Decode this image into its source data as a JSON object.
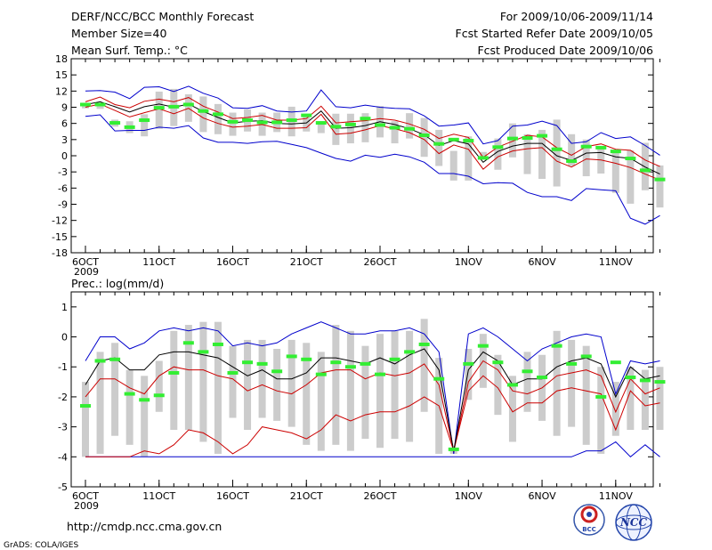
{
  "header": {
    "title": "DERF/NCC/BCC Monthly Forecast",
    "member_size": "Member Size=40",
    "variable": "Mean Surf. Temp.: °C",
    "period": "For 2009/10/06-2009/11/14",
    "refer_date": "Fcst Started Refer Date 2009/10/05",
    "produced_date": "Fcst Produced Date 2009/10/06"
  },
  "footer": {
    "url": "http://cmdp.ncc.cma.gov.cn",
    "credit": "GrADS: COLA/IGES",
    "logo_bcc": "BCC",
    "logo_ncc": "NCC"
  },
  "colors": {
    "ensemble_mean": "#000000",
    "envelope": "#0000cc",
    "percentile": "#cc0000",
    "bar": "#cccccc",
    "observed": "#33ee33"
  },
  "chart_data": [
    {
      "type": "line",
      "title": "Mean Surf. Temp.: °C",
      "xlabel": "",
      "ylabel": "°C",
      "ylim": [
        -18,
        18
      ],
      "yticks": [
        -18,
        -15,
        -12,
        -9,
        -6,
        -3,
        0,
        3,
        6,
        9,
        12,
        15,
        18
      ],
      "xtick_labels": [
        "6OCT",
        "11OCT",
        "16OCT",
        "21OCT",
        "26OCT",
        "1NOV",
        "6NOV",
        "11NOV"
      ],
      "xtick_days": [
        0,
        5,
        10,
        15,
        20,
        26,
        31,
        36
      ],
      "year_label": "2009",
      "days": 40,
      "series": [
        {
          "name": "max",
          "values": [
            12,
            12.1,
            11.8,
            10.6,
            12.7,
            12.8,
            11.9,
            12.9,
            11.6,
            10.7,
            8.9,
            8.8,
            9.3,
            8.3,
            8.1,
            8.3,
            12.2,
            9.1,
            8.9,
            9.4,
            9.0,
            8.8,
            8.7,
            7.4,
            5.5,
            5.7,
            6.1,
            2.2,
            2.8,
            5.5,
            5.7,
            6.4,
            5.6,
            2.3,
            2.6,
            4.3,
            3.2,
            3.5,
            1.9,
            0.1
          ]
        },
        {
          "name": "p75",
          "values": [
            10.0,
            10.9,
            9.5,
            8.9,
            10.1,
            10.5,
            10.0,
            10.8,
            9.2,
            8.1,
            6.9,
            7.1,
            7.5,
            6.6,
            6.6,
            6.9,
            9.2,
            6.1,
            6.3,
            6.5,
            6.9,
            6.6,
            5.9,
            4.9,
            3.2,
            4.0,
            3.4,
            -0.3,
            1.6,
            2.7,
            3.8,
            3.5,
            1.5,
            0.1,
            1.7,
            2.2,
            1.2,
            1.0,
            -0.8,
            -2.0
          ]
        },
        {
          "name": "mean",
          "values": [
            9.5,
            10.0,
            9.1,
            8.1,
            9.1,
            9.6,
            9.0,
            9.6,
            8.2,
            7.1,
            6.1,
            6.4,
            6.5,
            6.0,
            5.9,
            6.1,
            8.3,
            5.1,
            5.2,
            5.6,
            6.3,
            5.8,
            5.0,
            3.9,
            1.9,
            2.8,
            2.2,
            -1.2,
            0.8,
            1.8,
            2.3,
            2.3,
            0.0,
            -0.9,
            0.5,
            0.6,
            -0.2,
            -0.5,
            -2.1,
            -3.4
          ]
        },
        {
          "name": "p25",
          "values": [
            9.0,
            9.6,
            8.4,
            7.2,
            8.0,
            8.7,
            7.8,
            8.8,
            7.0,
            6.0,
            5.3,
            5.5,
            5.8,
            5.1,
            5.1,
            5.2,
            7.7,
            4.0,
            4.2,
            4.8,
            5.6,
            5.0,
            4.3,
            3.0,
            0.4,
            2.0,
            1.2,
            -2.5,
            -0.2,
            0.9,
            1.3,
            1.5,
            -1.0,
            -2.1,
            -0.6,
            -0.8,
            -1.4,
            -2.2,
            -3.4,
            -4.5
          ]
        },
        {
          "name": "min",
          "values": [
            7.3,
            7.6,
            4.6,
            4.7,
            4.7,
            5.3,
            5.1,
            5.6,
            3.3,
            2.5,
            2.5,
            2.3,
            2.6,
            2.7,
            2.1,
            1.5,
            0.5,
            -0.5,
            -1.0,
            0.1,
            -0.3,
            0.3,
            -0.2,
            -1.2,
            -3.3,
            -3.3,
            -3.8,
            -5.2,
            -5.0,
            -5.1,
            -6.8,
            -7.6,
            -7.6,
            -8.3,
            -6.1,
            -6.3,
            -6.5,
            -11.6,
            -12.7,
            -11.1
          ]
        },
        {
          "name": "observed",
          "values": [
            9.5,
            9.5,
            6.1,
            5.3,
            6.6,
            8.9,
            9.1,
            9.5,
            8.3,
            7.7,
            6.3,
            6.6,
            6.2,
            6.2,
            6.6,
            7.5,
            6.1,
            5.4,
            5.8,
            6.9,
            5.7,
            5.2,
            5.0,
            3.8,
            2.2,
            3.0,
            2.8,
            -0.4,
            1.6,
            3.2,
            3.3,
            3.7,
            1.2,
            -1.0,
            1.7,
            1.5,
            0.8,
            -0.5,
            -2.7,
            -4.4
          ]
        },
        {
          "name": "bar_top",
          "values": [
            9.5,
            9.5,
            6.7,
            6.4,
            7.7,
            11.9,
            12.4,
            11.4,
            11.0,
            9.6,
            8.0,
            8.6,
            8.0,
            8.0,
            9.1,
            7.7,
            6.1,
            7.8,
            7.8,
            7.9,
            9.2,
            6.4,
            7.9,
            7.0,
            4.8,
            0.9,
            3.6,
            0.7,
            3.2,
            6.0,
            4.0,
            4.8,
            6.7,
            4.0,
            3.0,
            1.5,
            0.5,
            1.0,
            2.4,
            -1.8
          ]
        },
        {
          "name": "bar_bottom",
          "values": [
            8.8,
            8.7,
            5.4,
            4.2,
            3.6,
            5.0,
            5.5,
            6.3,
            4.4,
            4.0,
            3.7,
            4.5,
            3.7,
            4.4,
            3.6,
            4.5,
            4.2,
            2.0,
            2.3,
            2.5,
            3.4,
            2.3,
            3.2,
            -0.2,
            -1.9,
            -4.6,
            -4.6,
            -0.4,
            -2.6,
            -0.3,
            -3.4,
            -4.3,
            -5.7,
            -1.9,
            -3.8,
            -3.3,
            -6.9,
            -8.9,
            -6.4,
            -9.6
          ]
        }
      ]
    },
    {
      "type": "line",
      "title": "Prec.: log(mm/d)",
      "xlabel": "",
      "ylabel": "log(mm/d)",
      "ylim": [
        -5,
        1.5
      ],
      "yticks": [
        -5,
        -4,
        -3,
        -2,
        -1,
        0,
        1
      ],
      "xtick_labels": [
        "6OCT",
        "11OCT",
        "16OCT",
        "21OCT",
        "26OCT",
        "1NOV",
        "6NOV",
        "11NOV"
      ],
      "xtick_days": [
        0,
        5,
        10,
        15,
        20,
        26,
        31,
        36
      ],
      "year_label": "2009",
      "days": 40,
      "series": [
        {
          "name": "max",
          "values": [
            -0.8,
            0.0,
            0.0,
            -0.4,
            -0.2,
            0.2,
            0.3,
            0.2,
            0.3,
            0.2,
            -0.3,
            -0.2,
            -0.3,
            -0.2,
            0.1,
            0.3,
            0.5,
            0.3,
            0.1,
            0.1,
            0.2,
            0.2,
            0.3,
            0.1,
            -0.5,
            -3.9,
            0.1,
            0.3,
            0.0,
            -0.4,
            -0.8,
            -0.4,
            -0.2,
            0.0,
            0.1,
            0.0,
            -1.9,
            -0.8,
            -0.9,
            -0.8
          ]
        },
        {
          "name": "mean",
          "values": [
            -1.6,
            -0.8,
            -0.7,
            -1.1,
            -1.1,
            -0.6,
            -0.5,
            -0.5,
            -0.6,
            -0.7,
            -1.0,
            -1.3,
            -1.1,
            -1.4,
            -1.4,
            -1.2,
            -0.7,
            -0.7,
            -0.8,
            -0.9,
            -0.7,
            -0.9,
            -0.6,
            -0.4,
            -1.1,
            -3.8,
            -1.1,
            -0.5,
            -0.8,
            -1.6,
            -1.4,
            -1.4,
            -1.0,
            -0.8,
            -0.7,
            -0.9,
            -2.0,
            -1.0,
            -1.4,
            -1.3
          ]
        },
        {
          "name": "p75",
          "values": [
            -2.0,
            -1.4,
            -1.4,
            -1.7,
            -1.9,
            -1.3,
            -1.0,
            -1.1,
            -1.1,
            -1.3,
            -1.4,
            -1.8,
            -1.6,
            -1.8,
            -1.9,
            -1.6,
            -1.2,
            -1.1,
            -1.1,
            -1.4,
            -1.2,
            -1.3,
            -1.2,
            -0.9,
            -1.6,
            -3.8,
            -1.5,
            -0.8,
            -1.1,
            -1.8,
            -1.9,
            -1.7,
            -1.3,
            -1.2,
            -1.1,
            -1.3,
            -2.5,
            -1.4,
            -1.9,
            -1.7
          ]
        },
        {
          "name": "p25",
          "values": [
            -4.0,
            -4.0,
            -4.0,
            -4.0,
            -3.8,
            -3.9,
            -3.6,
            -3.1,
            -3.2,
            -3.5,
            -3.9,
            -3.6,
            -3.0,
            -3.1,
            -3.2,
            -3.4,
            -3.1,
            -2.6,
            -2.8,
            -2.6,
            -2.5,
            -2.5,
            -2.3,
            -2.0,
            -2.3,
            -3.8,
            -1.8,
            -1.3,
            -1.7,
            -2.5,
            -2.2,
            -2.2,
            -1.8,
            -1.7,
            -1.8,
            -1.9,
            -3.1,
            -1.8,
            -2.3,
            -2.2
          ]
        },
        {
          "name": "min",
          "values": [
            -4.0,
            -4.0,
            -4.0,
            -4.0,
            -4.0,
            -4.0,
            -4.0,
            -4.0,
            -4.0,
            -4.0,
            -4.0,
            -4.0,
            -4.0,
            -4.0,
            -4.0,
            -4.0,
            -4.0,
            -4.0,
            -4.0,
            -4.0,
            -4.0,
            -4.0,
            -4.0,
            -4.0,
            -4.0,
            -4.0,
            -4.0,
            -4.0,
            -4.0,
            -4.0,
            -4.0,
            -4.0,
            -4.0,
            -4.0,
            -3.8,
            -3.8,
            -3.5,
            -4.0,
            -3.6,
            -4.0
          ]
        },
        {
          "name": "observed",
          "values": [
            -2.3,
            -0.8,
            -0.75,
            -1.9,
            -2.1,
            -1.95,
            -1.2,
            -0.2,
            -0.5,
            -0.25,
            -1.2,
            -0.85,
            -0.9,
            -1.15,
            -0.65,
            -0.75,
            -1.25,
            -0.85,
            -1.0,
            -0.9,
            -1.25,
            -0.75,
            -0.5,
            -0.25,
            -1.4,
            -3.75,
            -0.9,
            -0.3,
            -0.85,
            -1.6,
            -1.15,
            -1.35,
            -0.3,
            -0.9,
            -0.65,
            -2.0,
            -0.85,
            -1.35,
            -1.45,
            -1.5
          ]
        },
        {
          "name": "bar_top",
          "values": [
            -1.5,
            -0.5,
            -0.2,
            -1.1,
            -1.3,
            -0.8,
            0.2,
            0.4,
            0.5,
            0.5,
            -0.3,
            -0.1,
            -0.1,
            -0.4,
            -0.1,
            -0.2,
            -0.5,
            0.4,
            0.2,
            -0.3,
            0.1,
            0.2,
            0.2,
            0.6,
            -0.7,
            -3.8,
            -0.4,
            0.1,
            -0.6,
            -1.3,
            -0.5,
            -0.6,
            0.2,
            -0.1,
            -0.3,
            -1.0,
            -1.5,
            -1.0,
            -1.1,
            -1.0
          ]
        },
        {
          "name": "bar_bottom",
          "values": [
            -4.0,
            -3.9,
            -3.3,
            -3.6,
            -4.0,
            -2.5,
            -3.1,
            -3.1,
            -3.5,
            -3.9,
            -2.7,
            -3.1,
            -2.7,
            -2.8,
            -3.0,
            -3.6,
            -3.8,
            -3.6,
            -3.8,
            -3.4,
            -3.7,
            -3.4,
            -3.5,
            -2.5,
            -3.9,
            -3.9,
            -2.1,
            -1.7,
            -2.6,
            -3.5,
            -2.5,
            -2.8,
            -3.3,
            -3.0,
            -3.6,
            -3.9,
            -3.3,
            -3.1,
            -3.1,
            -3.1
          ]
        }
      ]
    }
  ]
}
